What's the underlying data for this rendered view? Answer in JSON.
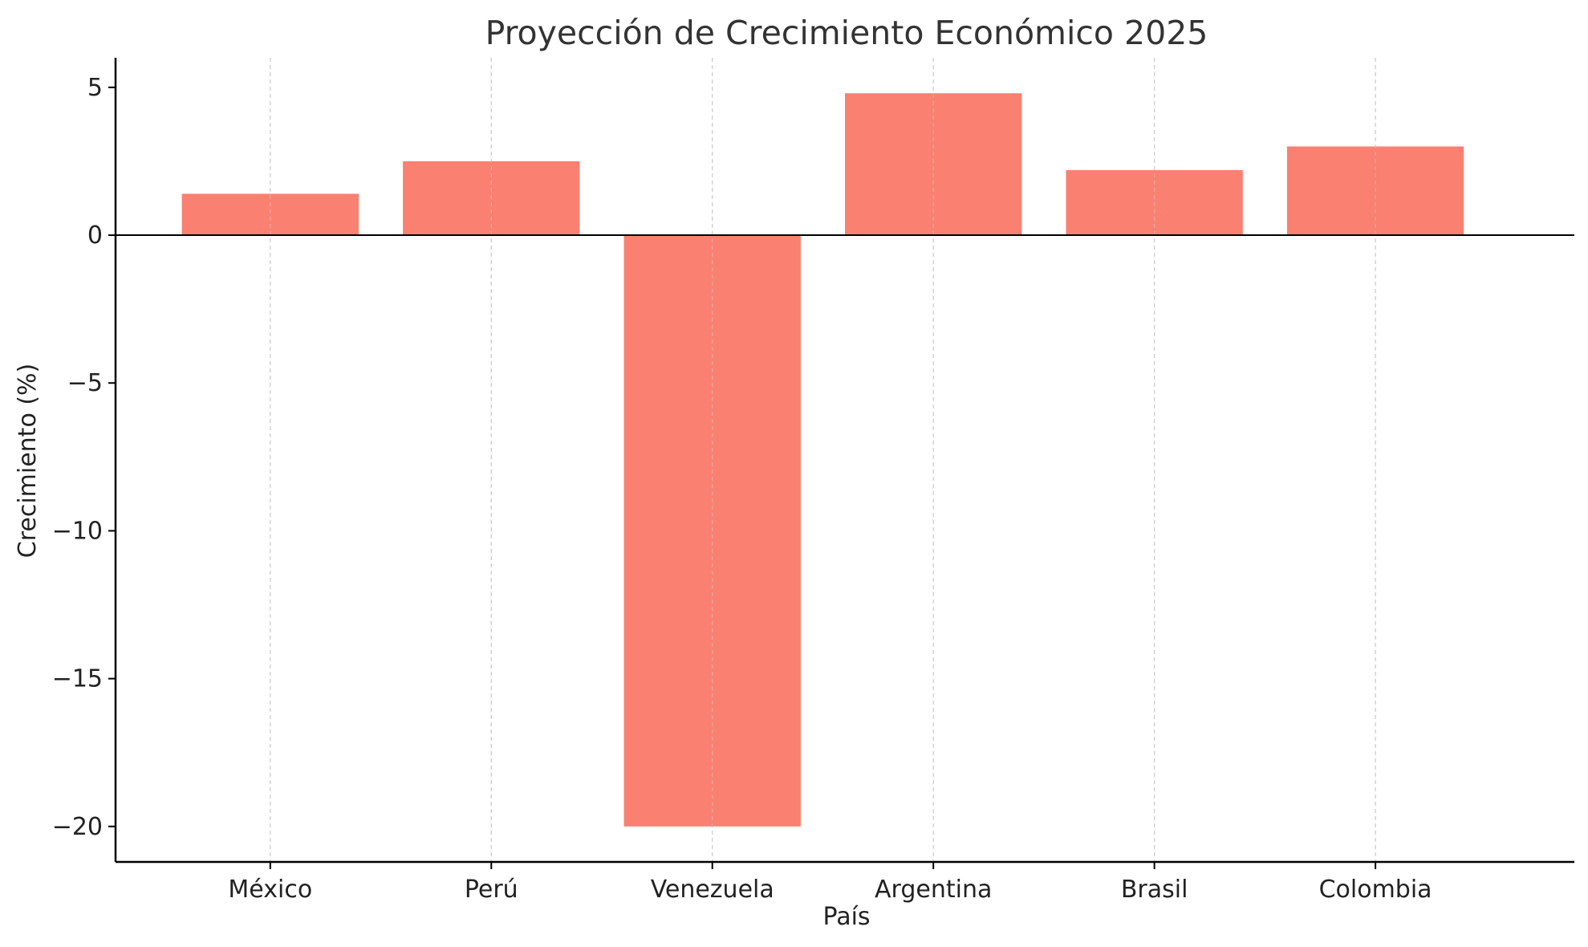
{
  "chart_data": {
    "type": "bar",
    "title": "Proyección de Crecimiento Económico 2025",
    "xlabel": "País",
    "ylabel": "Crecimiento (%)",
    "categories": [
      "México",
      "Perú",
      "Venezuela",
      "Argentina",
      "Brasil",
      "Colombia"
    ],
    "values": [
      1.4,
      2.5,
      -20.0,
      4.8,
      2.2,
      3.0
    ],
    "ylim": [
      -21.2,
      6.0
    ],
    "yticks": [
      5,
      0,
      -5,
      -10,
      -15,
      -20
    ],
    "ytick_labels": [
      "5",
      "0",
      "−5",
      "−10",
      "−15",
      "−20"
    ],
    "grid": "x-dashed",
    "zero_line": true,
    "legend": "none",
    "colors": {
      "bar": "#fa8072",
      "grid": "#cccccc",
      "axis": "#000000",
      "title": "#333333"
    }
  }
}
